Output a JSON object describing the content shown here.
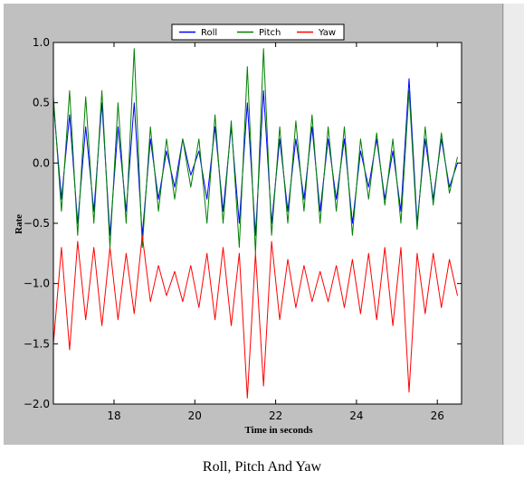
{
  "caption": "Roll, Pitch And Yaw",
  "chart_data": {
    "type": "line",
    "title": "",
    "xlabel": "Time in seconds",
    "ylabel": "Rate",
    "xlim": [
      16.5,
      26.6
    ],
    "ylim": [
      -2.0,
      1.0
    ],
    "xticks": [
      18,
      20,
      22,
      24,
      26
    ],
    "yticks": [
      -2.0,
      -1.5,
      -1.0,
      -0.5,
      0.0,
      0.5,
      1.0
    ],
    "xtick_labels": [
      "18",
      "20",
      "22",
      "24",
      "26"
    ],
    "ytick_labels": [
      "−2.0",
      "−1.5",
      "−1.0",
      "−0.5",
      "0.0",
      "0.5",
      "1.0"
    ],
    "grid": false,
    "legend_position": "top-center",
    "x": [
      16.5,
      16.7,
      16.9,
      17.1,
      17.3,
      17.5,
      17.7,
      17.9,
      18.1,
      18.3,
      18.5,
      18.7,
      18.9,
      19.1,
      19.3,
      19.5,
      19.7,
      19.9,
      20.1,
      20.3,
      20.5,
      20.7,
      20.9,
      21.1,
      21.3,
      21.5,
      21.7,
      21.9,
      22.1,
      22.3,
      22.5,
      22.7,
      22.9,
      23.1,
      23.3,
      23.5,
      23.7,
      23.9,
      24.1,
      24.3,
      24.5,
      24.7,
      24.9,
      25.1,
      25.3,
      25.5,
      25.7,
      25.9,
      26.1,
      26.3,
      26.5
    ],
    "series": [
      {
        "name": "Roll",
        "color": "#0000ff",
        "values": [
          0.5,
          -0.3,
          0.4,
          -0.5,
          0.3,
          -0.4,
          0.5,
          -0.6,
          0.3,
          -0.4,
          0.5,
          -0.6,
          0.2,
          -0.3,
          0.1,
          -0.2,
          0.2,
          -0.1,
          0.1,
          -0.3,
          0.3,
          -0.4,
          0.3,
          -0.5,
          0.5,
          -0.6,
          0.6,
          -0.5,
          0.2,
          -0.4,
          0.2,
          -0.3,
          0.3,
          -0.4,
          0.2,
          -0.3,
          0.2,
          -0.5,
          0.1,
          -0.2,
          0.2,
          -0.3,
          0.1,
          -0.4,
          0.7,
          -0.5,
          0.2,
          -0.3,
          0.2,
          -0.2,
          0.0
        ]
      },
      {
        "name": "Pitch",
        "color": "#008000",
        "values": [
          0.55,
          -0.4,
          0.6,
          -0.6,
          0.55,
          -0.5,
          0.6,
          -0.7,
          0.5,
          -0.5,
          0.95,
          -0.7,
          0.3,
          -0.4,
          0.2,
          -0.3,
          0.2,
          -0.2,
          0.2,
          -0.5,
          0.4,
          -0.5,
          0.35,
          -0.7,
          0.8,
          -0.75,
          0.95,
          -0.6,
          0.3,
          -0.5,
          0.35,
          -0.4,
          0.4,
          -0.5,
          0.3,
          -0.4,
          0.3,
          -0.6,
          0.2,
          -0.3,
          0.25,
          -0.35,
          0.2,
          -0.5,
          0.6,
          -0.55,
          0.3,
          -0.35,
          0.25,
          -0.25,
          0.05
        ]
      },
      {
        "name": "Yaw",
        "color": "#ff0000",
        "values": [
          -1.5,
          -0.7,
          -1.55,
          -0.65,
          -1.3,
          -0.7,
          -1.35,
          -0.7,
          -1.3,
          -0.75,
          -1.25,
          -0.6,
          -1.15,
          -0.85,
          -1.1,
          -0.9,
          -1.15,
          -0.85,
          -1.2,
          -0.75,
          -1.3,
          -0.7,
          -1.35,
          -0.75,
          -1.95,
          -0.75,
          -1.85,
          -0.65,
          -1.3,
          -0.8,
          -1.2,
          -0.85,
          -1.15,
          -0.9,
          -1.15,
          -0.85,
          -1.2,
          -0.8,
          -1.25,
          -0.75,
          -1.3,
          -0.7,
          -1.35,
          -0.7,
          -1.9,
          -0.75,
          -1.25,
          -0.75,
          -1.2,
          -0.8,
          -1.1
        ]
      }
    ]
  }
}
